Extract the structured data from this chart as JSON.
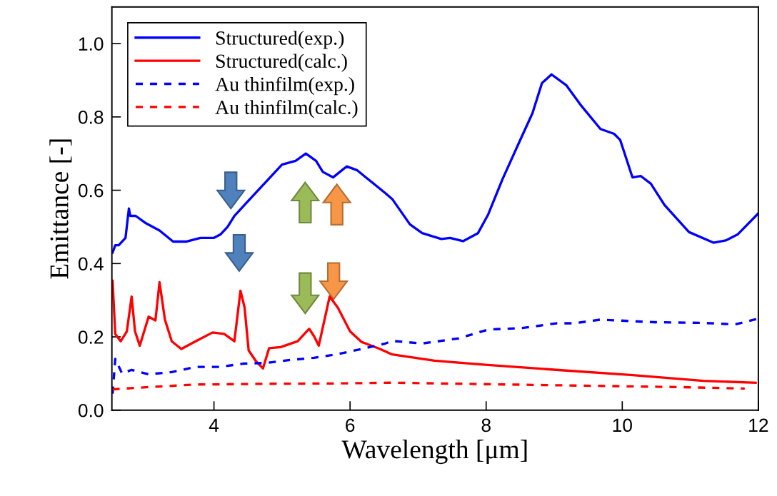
{
  "chart_data": {
    "type": "line",
    "xlabel": "Wavelength [μm]",
    "ylabel": "Emittance [-]",
    "xlim": [
      2.5,
      12
    ],
    "ylim": [
      0,
      1.1
    ],
    "xticks": [
      4,
      6,
      8,
      10,
      12
    ],
    "yticks": [
      {
        "value": 0,
        "label": "0.0"
      },
      {
        "value": 0.2,
        "label": "0.2"
      },
      {
        "value": 0.4,
        "label": "0.4"
      },
      {
        "value": 0.6,
        "label": "0.6"
      },
      {
        "value": 0.8,
        "label": "0.8"
      },
      {
        "value": 1.0,
        "label": "1.0"
      }
    ],
    "grid": false,
    "legend": "top left",
    "series": [
      {
        "name": "Structured(exp.)",
        "color": "#0000ff",
        "line_style": "solid",
        "x": [
          2.51,
          2.55,
          2.6,
          2.7,
          2.75,
          2.77,
          2.85,
          3.0,
          3.2,
          3.4,
          3.6,
          3.8,
          4.0,
          4.1,
          4.2,
          4.3,
          4.5,
          4.7,
          4.9,
          5.0,
          5.2,
          5.35,
          5.5,
          5.6,
          5.75,
          5.85,
          5.95,
          6.1,
          6.3,
          6.52,
          6.62,
          6.88,
          7.06,
          7.34,
          7.47,
          7.66,
          7.88,
          8.03,
          8.24,
          8.5,
          8.68,
          8.82,
          8.96,
          9.18,
          9.4,
          9.68,
          9.88,
          9.97,
          10.15,
          10.27,
          10.42,
          10.62,
          10.98,
          11.34,
          11.52,
          11.7,
          12.0
        ],
        "values": [
          0.43,
          0.45,
          0.45,
          0.47,
          0.55,
          0.53,
          0.53,
          0.51,
          0.49,
          0.46,
          0.46,
          0.47,
          0.47,
          0.48,
          0.5,
          0.53,
          0.57,
          0.61,
          0.65,
          0.67,
          0.68,
          0.7,
          0.68,
          0.65,
          0.635,
          0.65,
          0.665,
          0.655,
          0.625,
          0.592,
          0.576,
          0.507,
          0.483,
          0.467,
          0.47,
          0.461,
          0.483,
          0.534,
          0.63,
          0.737,
          0.81,
          0.892,
          0.916,
          0.886,
          0.83,
          0.767,
          0.754,
          0.737,
          0.635,
          0.639,
          0.618,
          0.56,
          0.486,
          0.457,
          0.463,
          0.48,
          0.537
        ]
      },
      {
        "name": "Structured(calc.)",
        "color": "#ff0000",
        "line_style": "solid",
        "x": [
          2.51,
          2.55,
          2.63,
          2.72,
          2.79,
          2.84,
          2.91,
          3.04,
          3.14,
          3.2,
          3.28,
          3.38,
          3.52,
          3.73,
          3.98,
          4.15,
          4.3,
          4.39,
          4.45,
          4.51,
          4.62,
          4.72,
          4.81,
          4.98,
          5.23,
          5.4,
          5.47,
          5.54,
          5.7,
          5.82,
          6.0,
          6.17,
          6.44,
          6.62,
          7.24,
          7.99,
          9.03,
          10.12,
          11.19,
          11.96
        ],
        "values": [
          0.353,
          0.208,
          0.188,
          0.215,
          0.31,
          0.215,
          0.176,
          0.255,
          0.245,
          0.349,
          0.247,
          0.188,
          0.167,
          0.188,
          0.212,
          0.208,
          0.188,
          0.326,
          0.28,
          0.163,
          0.133,
          0.114,
          0.169,
          0.172,
          0.188,
          0.222,
          0.202,
          0.176,
          0.31,
          0.28,
          0.215,
          0.186,
          0.167,
          0.152,
          0.135,
          0.124,
          0.11,
          0.096,
          0.08,
          0.075
        ]
      },
      {
        "name": "Au thinfilm(exp.)",
        "color": "#0000ff",
        "line_style": "dashed",
        "x": [
          2.51,
          2.55,
          2.65,
          2.79,
          3.04,
          3.38,
          3.73,
          4.08,
          4.43,
          4.77,
          5.12,
          5.47,
          5.82,
          6.17,
          6.52,
          6.62,
          7.06,
          7.6,
          8.03,
          8.53,
          9.03,
          9.29,
          9.68,
          10.47,
          11.19,
          11.66,
          12.0
        ],
        "values": [
          0.045,
          0.14,
          0.1,
          0.11,
          0.098,
          0.104,
          0.118,
          0.118,
          0.127,
          0.129,
          0.137,
          0.143,
          0.153,
          0.167,
          0.182,
          0.189,
          0.182,
          0.196,
          0.22,
          0.224,
          0.237,
          0.237,
          0.247,
          0.24,
          0.238,
          0.234,
          0.25
        ]
      },
      {
        "name": "Au thinfilm(calc.)",
        "color": "#ff0000",
        "line_style": "dashed",
        "x": [
          2.51,
          3.04,
          3.73,
          4.77,
          5.82,
          6.62,
          8.68,
          10.84,
          11.8
        ],
        "values": [
          0.057,
          0.063,
          0.07,
          0.072,
          0.073,
          0.075,
          0.069,
          0.063,
          0.059
        ]
      }
    ]
  }
}
